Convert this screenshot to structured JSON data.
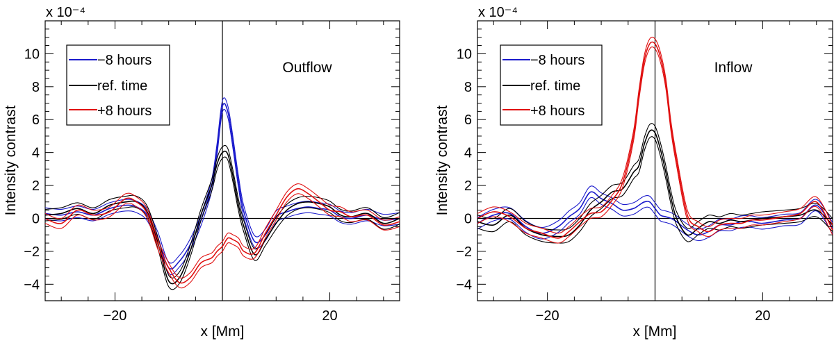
{
  "chart_data": [
    {
      "type": "line",
      "panel_label": "Outflow",
      "xlabel": "x [Mm]",
      "ylabel": "Intensity contrast",
      "scale_exponent": "x 10⁻⁴",
      "xlim": [
        -33,
        33
      ],
      "ylim": [
        -5,
        12
      ],
      "xticks": [
        -20,
        0,
        20
      ],
      "xtick_labels": [
        "−20",
        "",
        "20"
      ],
      "yticks": [
        -4,
        -2,
        0,
        2,
        4,
        6,
        8,
        10
      ],
      "ytick_labels": [
        "−4",
        "−2",
        "0",
        "2",
        "4",
        "6",
        "8",
        "10"
      ],
      "legend": [
        "−8 hours",
        "ref. time",
        "+8 hours"
      ],
      "legend_location": "top-left",
      "zero_lines": true,
      "colors": [
        "#1a1acc",
        "#000000",
        "#e01010"
      ],
      "x": [
        -33,
        -30,
        -27,
        -24,
        -21,
        -18,
        -16,
        -14,
        -12,
        -10,
        -8,
        -6,
        -4,
        -2,
        -1,
        0,
        1,
        2,
        3,
        4,
        6,
        8,
        10,
        12,
        14,
        16,
        18,
        20,
        22,
        24,
        27,
        30,
        33
      ],
      "series": [
        {
          "name": "−8 hours",
          "values": [
            0.3,
            0.2,
            0.4,
            0.2,
            0.6,
            0.8,
            0.7,
            0.2,
            -1.2,
            -3.0,
            -2.6,
            -1.6,
            -0.1,
            2.0,
            4.2,
            6.8,
            6.5,
            4.5,
            2.2,
            0.4,
            -1.4,
            -1.0,
            0.1,
            0.4,
            0.6,
            0.7,
            0.6,
            0.5,
            0.1,
            0.0,
            0.2,
            -0.1,
            0.0
          ],
          "band": 0.35
        },
        {
          "name": "ref. time",
          "values": [
            0.2,
            0.3,
            0.6,
            0.3,
            0.8,
            1.0,
            1.0,
            0.4,
            -1.5,
            -3.8,
            -3.6,
            -2.0,
            0.2,
            2.0,
            3.3,
            4.0,
            3.9,
            2.5,
            0.8,
            -0.5,
            -2.2,
            -1.3,
            -0.3,
            0.5,
            0.9,
            1.0,
            0.9,
            0.7,
            0.2,
            0.1,
            0.3,
            -0.3,
            0.0
          ],
          "band": 0.35
        },
        {
          "name": "+8 hours",
          "values": [
            0.0,
            -0.3,
            0.5,
            0.2,
            0.4,
            1.2,
            1.0,
            0.3,
            -1.6,
            -3.0,
            -3.9,
            -3.6,
            -2.7,
            -2.4,
            -2.0,
            -1.7,
            -1.2,
            -1.3,
            -1.5,
            -2.0,
            -2.1,
            -0.9,
            0.2,
            1.3,
            1.8,
            1.5,
            1.0,
            0.5,
            0.4,
            0.1,
            0.2,
            -0.4,
            -0.2
          ],
          "band": 0.3
        }
      ]
    },
    {
      "type": "line",
      "panel_label": "Inflow",
      "xlabel": "x [Mm]",
      "ylabel": "Intensity contrast",
      "scale_exponent": "x 10⁻⁴",
      "xlim": [
        -33,
        33
      ],
      "ylim": [
        -5,
        12
      ],
      "xticks": [
        -20,
        0,
        20
      ],
      "xtick_labels": [
        "−20",
        "",
        "20"
      ],
      "yticks": [
        -4,
        -2,
        0,
        2,
        4,
        6,
        8,
        10
      ],
      "ytick_labels": [
        "−4",
        "−2",
        "0",
        "2",
        "4",
        "6",
        "8",
        "10"
      ],
      "legend": [
        "−8 hours",
        "ref. time",
        "+8 hours"
      ],
      "legend_location": "top-left",
      "zero_lines": true,
      "colors": [
        "#1a1acc",
        "#000000",
        "#e01010"
      ],
      "x": [
        -33,
        -30,
        -27,
        -24,
        -21,
        -18,
        -16,
        -14,
        -12,
        -10,
        -8,
        -6,
        -4,
        -3,
        -2,
        -1,
        0,
        1,
        2,
        3,
        4,
        6,
        8,
        10,
        12,
        14,
        16,
        18,
        20,
        24,
        27,
        30,
        33
      ],
      "series": [
        {
          "name": "−8 hours",
          "values": [
            -0.3,
            0.2,
            0.3,
            -0.5,
            -0.9,
            -0.5,
            0.1,
            0.6,
            1.6,
            1.2,
            0.9,
            0.5,
            0.6,
            0.8,
            1.0,
            1.0,
            0.6,
            0.2,
            0.1,
            0.0,
            -0.2,
            -0.7,
            -1.0,
            -0.8,
            -0.4,
            -0.4,
            -0.2,
            -0.2,
            -0.3,
            -0.1,
            0.0,
            0.8,
            -0.6
          ],
          "band": 0.35
        },
        {
          "name": "ref. time",
          "values": [
            -0.2,
            -0.4,
            0.2,
            -0.6,
            -1.0,
            -1.1,
            -1.0,
            -0.4,
            0.5,
            1.0,
            1.6,
            1.8,
            2.8,
            3.2,
            4.5,
            5.3,
            5.2,
            4.2,
            2.8,
            1.2,
            0.0,
            -1.0,
            -0.6,
            -0.2,
            -0.3,
            -0.1,
            -0.2,
            -0.1,
            0.0,
            0.1,
            0.2,
            0.5,
            -0.4
          ],
          "band": 0.4
        },
        {
          "name": "+8 hours",
          "values": [
            0.0,
            0.4,
            0.1,
            -0.6,
            -0.9,
            -1.2,
            -0.8,
            -0.2,
            0.3,
            0.4,
            1.1,
            2.2,
            5.0,
            7.5,
            9.6,
            10.6,
            10.6,
            9.8,
            8.2,
            5.5,
            3.5,
            0.2,
            -0.5,
            -0.8,
            -0.4,
            -0.3,
            -0.3,
            -0.1,
            -0.1,
            0.1,
            0.3,
            1.0,
            -0.7
          ],
          "band": 0.3
        }
      ]
    }
  ]
}
